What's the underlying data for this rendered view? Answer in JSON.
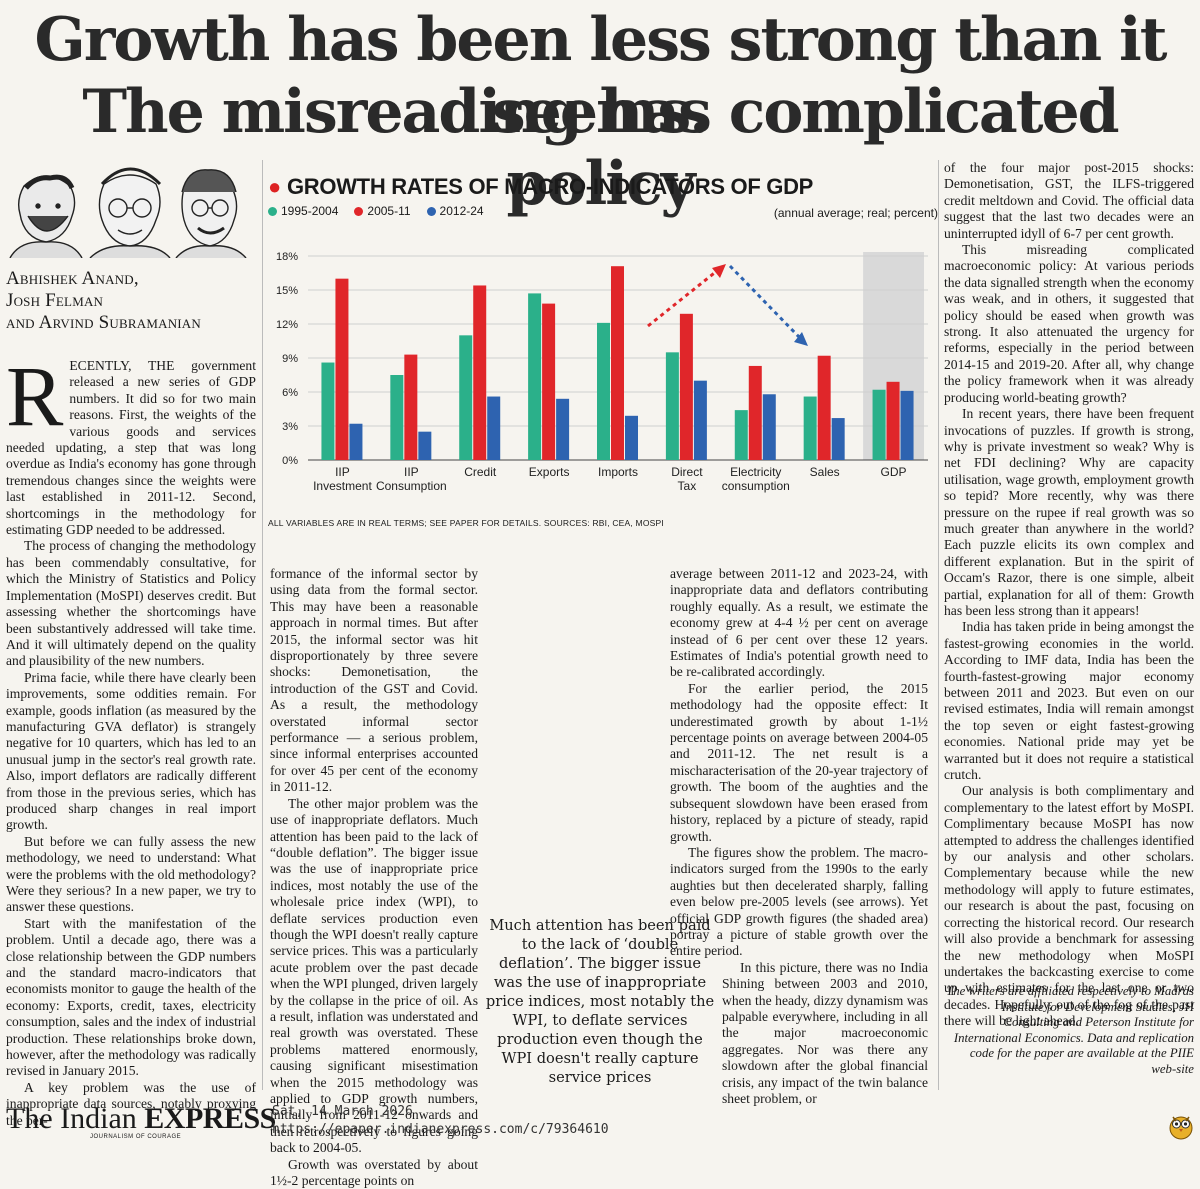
{
  "headline": {
    "line1": "Growth has been less strong than it seems.",
    "line2": "The misreading has complicated policy"
  },
  "byline": {
    "line1": "Abhishek Anand,",
    "line2": "Josh Felman",
    "line3": "and Arvind Subramanian"
  },
  "col1": {
    "dropcap": "R",
    "p1": "ECENTLY, THE government released a new series of GDP numbers. It did so for two main reasons. First, the weights of the various goods and services needed updating, a step that was long overdue as India's economy has gone through tremendous changes since the weights were last established in 2011-12. Second, shortcomings in the methodology for estimating GDP needed to be addressed.",
    "p2": "The process of changing the methodology has been commendably consultative, for which the Ministry of Statistics and Policy Implementation (MoSPI) deserves credit. But assessing whether the shortcomings have been substantively addressed will take time. And it will ultimately depend on the quality and plausibility of the new numbers.",
    "p3": "Prima facie, while there have clearly been improvements, some oddities remain. For example, goods inflation (as measured by the manufacturing GVA deflator) is strangely negative for 10 quarters, which has led to an unusual jump in the sector's real growth rate. Also, import deflators are radically different from those in the previous series, which has produced sharp changes in real import growth.",
    "p4": "But before we can fully assess the new methodology, we need to understand: What were the problems with the old methodology? Were they serious? In a new paper, we try to answer these questions.",
    "p5": "Start with the manifestation of the problem. Until a decade ago, there was a close relationship between the GDP numbers and the standard macro-indicators that economists monitor to gauge the health of the economy: Exports, credit, taxes, electricity consumption, sales and the index of industrial production. These relationships broke down, however, after the methodology was radically revised in January 2015.",
    "p6": "A key problem was the use of inappropriate data sources, notably proxying the per-"
  },
  "col2": {
    "p1": "formance of the informal sector by using data from the formal sector. This may have been a reasonable approach in normal times. But after 2015, the informal sector was hit disproportionately by three severe shocks: Demonetisation, the introduction of the GST and Covid. As a result, the methodology overstated informal sector performance — a serious problem, since informal enterprises accounted for over 45 per cent of the economy in 2011-12.",
    "p2": "The other major problem was the use of inappropriate deflators. Much attention has been paid to the lack of “double deflation”. The bigger issue was the use of inappropriate price indices, most notably the use of the wholesale price index (WPI), to deflate services production even though the WPI doesn't really capture service prices. This was a particularly acute problem over the past decade when the WPI plunged, driven largely by the collapse in the price of oil. As a result, inflation was understated and real growth was overstated. These problems mattered enormously, causing significant misestimation when the 2015 methodology was applied to GDP growth numbers, initially from 2011-12 onwards and then retrospectively to figures going back to 2004-05.",
    "p3": "Growth was overstated by about 1½-2 percentage points on"
  },
  "col3": {
    "p1": "average between 2011-12 and 2023-24, with inappropriate data and deflators contributing roughly equally. As a result, we estimate the economy grew at 4-4 ½ per cent on average instead of 6 per cent over these 12 years. Estimates of India's potential growth need to be re-calibrated accordingly.",
    "p2": "For the earlier period, the 2015 methodology had the opposite effect: It underestimated growth by about 1-1½ percentage points on average between 2004-05 and 2011-12. The net result is a mischaracterisation of the 20-year trajectory of growth. The boom of the aughties and the subsequent slowdown have been erased from history, replaced by a picture of steady, rapid growth.",
    "p3": "The figures show the problem. The macro-indicators surged from the 1990s to the early aughties but then decelerated sharply, falling even below pre-2005 levels (see arrows). Yet official GDP growth figures (the shaded area) portray a picture of stable growth over the entire period.",
    "p4": "In this picture, there was no India Shining between 2003 and 2010, when the heady, dizzy dynamism was palpable everywhere, including in all the major macroeconomic aggregates. Nor was there any slowdown after the global financial crisis, any impact of the twin balance sheet problem, or"
  },
  "col4": {
    "p1": "of the four major post-2015 shocks: Demonetisation, GST, the ILFS-triggered credit meltdown and Covid. The official data suggest that the last two decades were an uninterrupted idyll of 6-7 per cent growth.",
    "p2": "This misreading complicated macroeconomic policy: At various periods the data signalled strength when the economy was weak, and in others, it suggested that policy should be eased when growth was strong. It also attenuated the urgency for reforms, especially in the period between 2014-15 and 2019-20. After all, why change the policy framework when it was already producing world-beating growth?",
    "p3": "In recent years, there have been frequent invocations of puzzles. If growth is strong, why is private investment so weak? Why is net FDI declining? Why are capacity utilisation, wage growth, employment growth so tepid? More recently, why was there pressure on the rupee if real growth was so much greater than anywhere in the world? Each puzzle elicits its own complex and different explanation. But in the spirit of Occam's Razor, there is one simple, albeit partial, explanation for all of them: Growth has been less strong than it appears!",
    "p4": "India has taken pride in being amongst the fastest-growing economies in the world. According to IMF data, India has been the fourth-fastest-growing major economy between 2011 and 2023. But even on our revised estimates, India will remain amongst the top seven or eight fastest-growing economies. National pride may yet be warranted but it does not require a statistical crutch.",
    "p5": "Our analysis is both complimentary and complementary to the latest effort by MoSPI. Complimentary because MoSPI has now attempted to address the challenges identified by our analysis and other scholars. Complementary because while the new methodology will apply to future estimates, our research is about the past, focusing on correcting the historical record. Our research will also provide a benchmark for assessing the new methodology when MoSPI undertakes the backcasting exercise to come up with estimates for the last one or two decades. Hopefully, out of the fog of the past there will be light ahead."
  },
  "pullquote": "Much attention has been paid to the lack of ‘double deflation’. The bigger issue was the use of inappropriate price indices, most notably the WPI, to deflate services production even though the WPI doesn't really capture service prices",
  "credits": "The writers are affiliated respectively to Madras Institute for Development Studies, JH Consulting and Peterson Institute for International Economics. Data and replication code for the paper are available at the PIIE web-site",
  "footer": {
    "logo_the": "The Indian ",
    "logo_express": "EXPRESS",
    "logo_tagline": "JOURNALISM OF COURAGE",
    "date": "Sat, 14 March 2026",
    "url": "https://epaper.indianexpress.com/c/79364610"
  },
  "chart_data": {
    "type": "bar",
    "title": "GROWTH RATES OF MACRO-INDICATORS OF GDP",
    "note": "(annual average; real; percent)",
    "source": "ALL VARIABLES ARE IN REAL TERMS; SEE PAPER FOR DETAILS. SOURCES: RBI, CEA, MOSPI",
    "categories": [
      "IIP Investment",
      "IIP Consumption",
      "Credit",
      "Exports",
      "Imports",
      "Direct Tax",
      "Electricity consumption",
      "Sales",
      "GDP"
    ],
    "category_lines": [
      [
        "IIP",
        "Investment"
      ],
      [
        "IIP",
        "Consumption"
      ],
      [
        "Credit"
      ],
      [
        "Exports"
      ],
      [
        "Imports"
      ],
      [
        "Direct",
        "Tax"
      ],
      [
        "Electricity",
        "consumption"
      ],
      [
        "Sales"
      ],
      [
        "GDP"
      ]
    ],
    "series": [
      {
        "name": "1995-2004",
        "color": "#2bb08a",
        "values": [
          8.6,
          7.5,
          11.0,
          14.7,
          12.1,
          9.5,
          4.4,
          5.6,
          6.2
        ]
      },
      {
        "name": "2005-11",
        "color": "#e0262a",
        "values": [
          16.0,
          9.3,
          15.4,
          13.8,
          17.1,
          12.9,
          8.3,
          9.2,
          6.9
        ]
      },
      {
        "name": "2012-24",
        "color": "#2e63b0",
        "values": [
          3.2,
          2.5,
          5.6,
          5.4,
          3.9,
          7.0,
          5.8,
          3.7,
          6.1
        ]
      }
    ],
    "y_ticks": [
      "0%",
      "3%",
      "6%",
      "9%",
      "12%",
      "15%",
      "18%"
    ],
    "ylim": [
      0,
      18
    ],
    "grid": true,
    "shaded_category": "GDP",
    "arrows": true
  }
}
